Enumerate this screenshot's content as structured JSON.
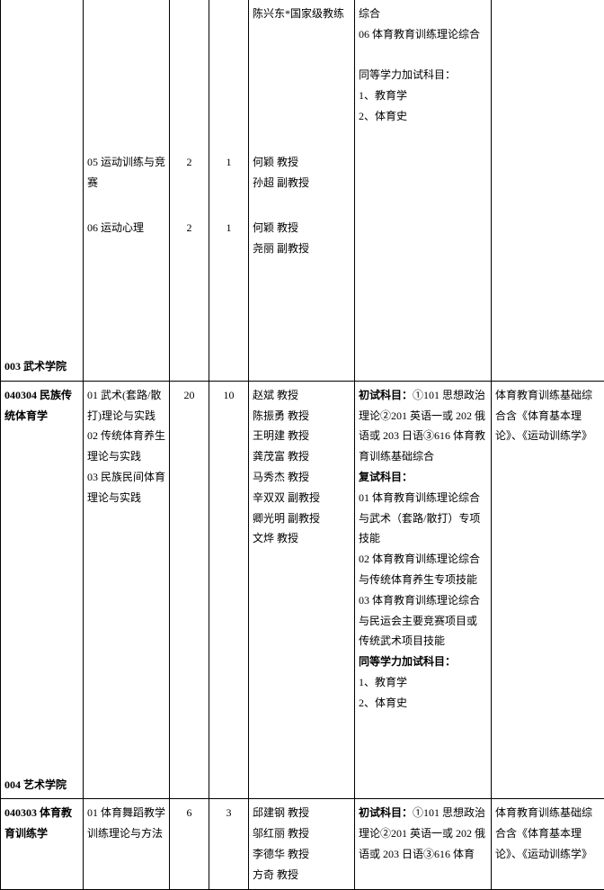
{
  "rows": [
    {
      "c1": "",
      "c2": "",
      "c3": "",
      "c4": "",
      "c5": "陈兴东*国家级教练",
      "c6": "综合\n06 体育教育训练理论综合\n\n同等学力加试科目：\n1、教育学\n2、体育史",
      "c7": ""
    },
    {
      "c1": "",
      "c2": "05 运动训练与竞赛",
      "c3": "2",
      "c4": "1",
      "c5": "何颖 教授\n孙超 副教授",
      "c6": "",
      "c7": ""
    },
    {
      "c1": "",
      "c2": "06 运动心理",
      "c3": "2",
      "c4": "1",
      "c5": "何颖 教授\n尧丽 副教授",
      "c6": "",
      "c7": ""
    },
    {
      "c1_html": "<span class='bold'>003 武术学院</span>",
      "c2": "",
      "c3": "",
      "c4": "",
      "c5": "",
      "c6": "",
      "c7": ""
    },
    {
      "sep": true,
      "c1_html": "<span class='bold'>040304 民族传统体育学</span>",
      "c2": "01 武术(套路/散打)理论与实践\n02 传统体育养生理论与实践\n03 民族民间体育理论与实践",
      "c3": "20",
      "c4": "10",
      "c5": "赵斌 教授\n陈振勇 教授\n王明建 教授\n龚茂富 教授\n马秀杰 教授\n辛双双 副教授\n卿光明 副教授\n文烨 教授",
      "c6_html": "<span class='bold'>初试科目：</span>①101 思想政治理论②201 英语一或 202 俄语或 203 日语③616 体育教育训练基础综合<br><span class='bold'>复试科目：</span><br>01 体育教育训练理论综合与武术（套路/散打）专项技能<br>02 体育教育训练理论综合与传统体育养生专项技能<br>03 体育教育训练理论综合与民运会主要竞赛项目或传统武术项目技能<br><span class='bold'>同等学力加试科目：</span><br>1、教育学<br>2、体育史",
      "c7": "体育教育训练基础综合含《体育基本理论》、《运动训练学》"
    },
    {
      "c1_html": "<span class='bold'>004 艺术学院</span>",
      "c2": "",
      "c3": "",
      "c4": "",
      "c5": "",
      "c6": "",
      "c7": ""
    },
    {
      "sep": true,
      "c1_html": "<span class='bold'>040303 体育教育训练学</span>",
      "c2": "01 体育舞蹈教学训练理论与方法",
      "c3": "6",
      "c4": "3",
      "c5": "邱建钢 教授\n邬红丽 教授\n李德华 教授\n方奇 教授",
      "c6_html": "<span class='bold'>初试科目：</span>①101 思想政治理论②201 英语一或 202 俄语或 203 日语③616 体育",
      "c7": "体育教育训练基础综合含《体育基本理论》、《运动训练学》"
    }
  ]
}
